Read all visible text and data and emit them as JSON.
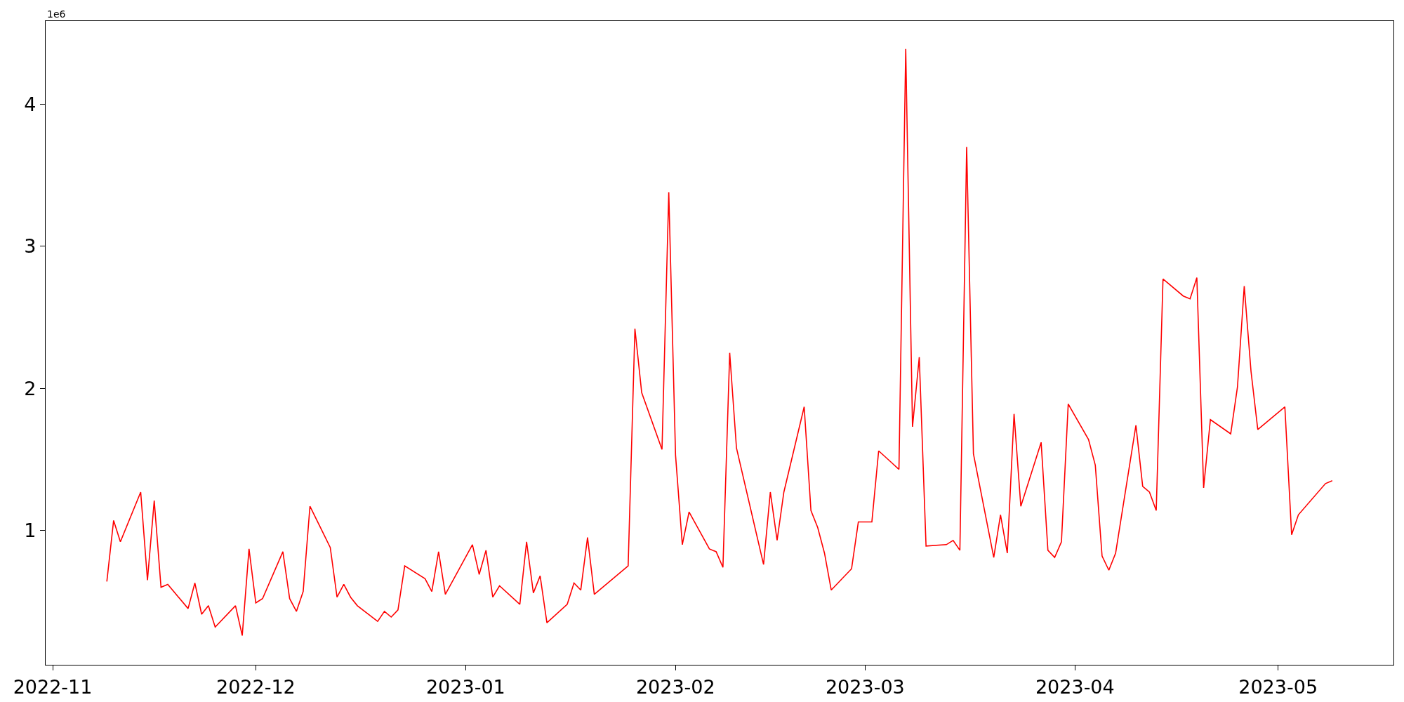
{
  "chart_data": {
    "type": "line",
    "annotations": [
      "1e6"
    ],
    "x": [
      "2022-11-09",
      "2022-11-10",
      "2022-11-11",
      "2022-11-14",
      "2022-11-15",
      "2022-11-16",
      "2022-11-17",
      "2022-11-18",
      "2022-11-21",
      "2022-11-22",
      "2022-11-23",
      "2022-11-24",
      "2022-11-25",
      "2022-11-28",
      "2022-11-29",
      "2022-11-30",
      "2022-12-01",
      "2022-12-02",
      "2022-12-05",
      "2022-12-06",
      "2022-12-07",
      "2022-12-08",
      "2022-12-09",
      "2022-12-12",
      "2022-12-13",
      "2022-12-14",
      "2022-12-15",
      "2022-12-16",
      "2022-12-19",
      "2022-12-20",
      "2022-12-21",
      "2022-12-22",
      "2022-12-23",
      "2022-12-26",
      "2022-12-27",
      "2022-12-28",
      "2022-12-29",
      "2023-01-02",
      "2023-01-03",
      "2023-01-04",
      "2023-01-05",
      "2023-01-06",
      "2023-01-09",
      "2023-01-10",
      "2023-01-11",
      "2023-01-12",
      "2023-01-13",
      "2023-01-16",
      "2023-01-17",
      "2023-01-18",
      "2023-01-19",
      "2023-01-20",
      "2023-01-25",
      "2023-01-26",
      "2023-01-27",
      "2023-01-30",
      "2023-01-31",
      "2023-02-01",
      "2023-02-02",
      "2023-02-03",
      "2023-02-06",
      "2023-02-07",
      "2023-02-08",
      "2023-02-09",
      "2023-02-10",
      "2023-02-14",
      "2023-02-15",
      "2023-02-16",
      "2023-02-17",
      "2023-02-20",
      "2023-02-21",
      "2023-02-22",
      "2023-02-23",
      "2023-02-24",
      "2023-02-27",
      "2023-02-28",
      "2023-03-02",
      "2023-03-03",
      "2023-03-06",
      "2023-03-07",
      "2023-03-08",
      "2023-03-09",
      "2023-03-10",
      "2023-03-13",
      "2023-03-14",
      "2023-03-15",
      "2023-03-16",
      "2023-03-17",
      "2023-03-20",
      "2023-03-21",
      "2023-03-22",
      "2023-03-23",
      "2023-03-24",
      "2023-03-27",
      "2023-03-28",
      "2023-03-29",
      "2023-03-30",
      "2023-03-31",
      "2023-04-03",
      "2023-04-04",
      "2023-04-05",
      "2023-04-06",
      "2023-04-07",
      "2023-04-10",
      "2023-04-11",
      "2023-04-12",
      "2023-04-13",
      "2023-04-14",
      "2023-04-17",
      "2023-04-18",
      "2023-04-19",
      "2023-04-20",
      "2023-04-21",
      "2023-04-24",
      "2023-04-25",
      "2023-04-26",
      "2023-04-27",
      "2023-04-28",
      "2023-05-02",
      "2023-05-03",
      "2023-05-04",
      "2023-05-08",
      "2023-05-09"
    ],
    "series": [
      {
        "color": "#ff0000",
        "values": [
          0.64,
          1.07,
          0.92,
          1.27,
          0.65,
          1.21,
          0.6,
          0.62,
          0.45,
          0.63,
          0.41,
          0.47,
          0.32,
          0.47,
          0.26,
          0.87,
          0.49,
          0.52,
          0.85,
          0.52,
          0.43,
          0.57,
          1.17,
          0.88,
          0.53,
          0.62,
          0.53,
          0.47,
          0.36,
          0.43,
          0.39,
          0.44,
          0.75,
          0.66,
          0.57,
          0.85,
          0.55,
          0.9,
          0.69,
          0.86,
          0.53,
          0.61,
          0.48,
          0.92,
          0.56,
          0.68,
          0.35,
          0.48,
          0.63,
          0.58,
          0.95,
          0.55,
          0.75,
          2.42,
          1.97,
          1.57,
          3.38,
          1.53,
          0.9,
          1.13,
          0.87,
          0.85,
          0.74,
          2.25,
          1.58,
          0.76,
          1.27,
          0.93,
          1.27,
          1.87,
          1.14,
          1.02,
          0.84,
          0.58,
          0.73,
          1.06,
          1.06,
          1.56,
          1.43,
          4.39,
          1.73,
          2.22,
          0.89,
          0.9,
          0.93,
          0.86,
          3.7,
          1.54,
          0.81,
          1.11,
          0.84,
          1.82,
          1.17,
          1.62,
          0.86,
          0.81,
          0.92,
          1.89,
          1.64,
          1.46,
          0.82,
          0.72,
          0.84,
          1.74,
          1.31,
          1.27,
          1.14,
          2.77,
          2.65,
          2.63,
          2.78,
          1.3,
          1.78,
          1.68,
          2.01,
          2.72,
          2.12,
          1.71,
          1.87,
          0.97,
          1.11,
          1.33,
          1.35
        ]
      }
    ],
    "xlim": [
      "2022-10-30T23:00",
      "2023-05-18T01:00"
    ],
    "xticks": [
      {
        "value": "2022-11-01",
        "label": "2022-11"
      },
      {
        "value": "2022-12-01",
        "label": "2022-12"
      },
      {
        "value": "2023-01-01",
        "label": "2023-01"
      },
      {
        "value": "2023-02-01",
        "label": "2023-02"
      },
      {
        "value": "2023-03-01",
        "label": "2023-03"
      },
      {
        "value": "2023-04-01",
        "label": "2023-04"
      },
      {
        "value": "2023-05-01",
        "label": "2023-05"
      }
    ],
    "ylim": [
      0.054,
      4.586
    ],
    "yticks": [
      1,
      2,
      3,
      4
    ],
    "grid": false,
    "marker": "none",
    "line_style": "solid"
  }
}
